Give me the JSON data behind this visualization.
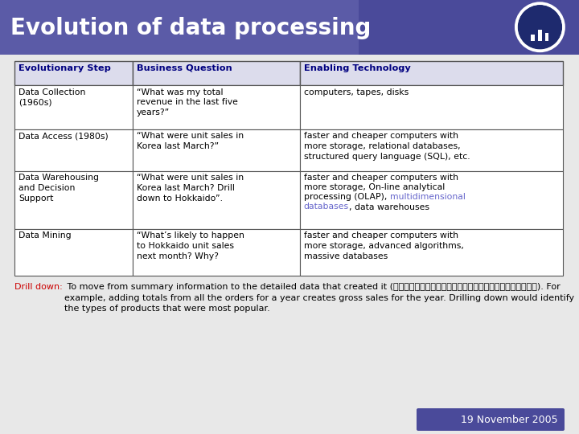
{
  "title": "Evolution of data processing",
  "title_bg_color": "#4a4a9a",
  "title_text_color": "#ffffff",
  "title_fontsize": 20,
  "bg_color": "#e8e8e8",
  "header_bg": "#dcdcec",
  "header_text_color": "#000080",
  "col_headers": [
    "Evolutionary Step",
    "Business Question",
    "Enabling Technology"
  ],
  "rows": [
    [
      "Data Collection\n(1960s)",
      "“What was my total\nrevenue in the last five\nyears?”",
      "computers, tapes, disks"
    ],
    [
      "Data Access (1980s)",
      "“What were unit sales in\nKorea last March?”",
      "faster and cheaper computers with\nmore storage, relational databases,\nstructured query language (SQL), etc."
    ],
    [
      "Data Warehousing\nand Decision\nSupport",
      "“What were unit sales in\nKorea last March? Drill\ndown to Hokkaido”.",
      "faster and cheaper computers with\nmore storage, On-line analytical\nprocessing (OLAP), {LINK}multidimensional\ndatabases{/LINK}, data warehouses"
    ],
    [
      "Data Mining",
      "“What’s likely to happen\nto Hokkaido unit sales\nnext month? Why?",
      "faster and cheaper computers with\nmore storage, advanced algorithms,\nmassive databases"
    ]
  ],
  "drill_down_label": "Drill down:",
  "drill_down_color": "#cc0000",
  "drill_down_text": " To move from summary information to the detailed data that created it (集計データを集計の元となる明細データへと掘り下げる操作). For example, adding totals from all the orders for a year creates gross sales for the year. Drilling down would identify the types of products that were most popular.",
  "date_text": "19 November 2005",
  "date_bg": "#4a4a9a",
  "date_text_color": "#ffffff",
  "border_color": "#555555",
  "link_color": "#6666cc"
}
